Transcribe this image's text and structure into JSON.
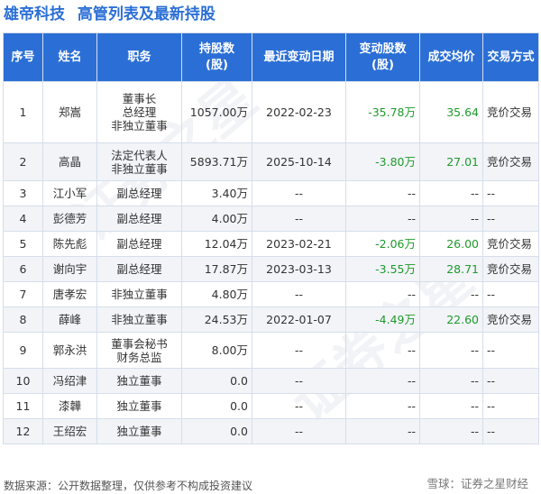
{
  "title": {
    "company": "雄帝科技",
    "text": "高管列表及最新持股"
  },
  "headers": [
    "序号",
    "姓名",
    "职务",
    "持股数\n(股)",
    "最近变动日期",
    "变动股数\n(股)",
    "成交均价",
    "交易方式"
  ],
  "rows": [
    {
      "no": "1",
      "name": "郑嵩",
      "title": [
        "董事长",
        "总经理",
        "非独立董事"
      ],
      "shares": "1057.00万",
      "date": "2022-02-23",
      "change": "-35.78万",
      "price": "35.64",
      "method": "竞价交易"
    },
    {
      "no": "2",
      "name": "高晶",
      "title": [
        "法定代表人",
        "非独立董事"
      ],
      "shares": "5893.71万",
      "date": "2025-10-14",
      "change": "-3.80万",
      "price": "27.01",
      "method": "竞价交易"
    },
    {
      "no": "3",
      "name": "江小军",
      "title": [
        "副总经理"
      ],
      "shares": "3.40万",
      "date": "--",
      "change": "--",
      "price": "--",
      "method": "--"
    },
    {
      "no": "4",
      "name": "彭德芳",
      "title": [
        "副总经理"
      ],
      "shares": "4.00万",
      "date": "--",
      "change": "--",
      "price": "--",
      "method": "--"
    },
    {
      "no": "5",
      "name": "陈先彪",
      "title": [
        "副总经理"
      ],
      "shares": "12.04万",
      "date": "2023-02-21",
      "change": "-2.06万",
      "price": "26.00",
      "method": "竞价交易"
    },
    {
      "no": "6",
      "name": "谢向宇",
      "title": [
        "副总经理"
      ],
      "shares": "17.87万",
      "date": "2023-03-13",
      "change": "-3.55万",
      "price": "28.71",
      "method": "竞价交易"
    },
    {
      "no": "7",
      "name": "唐孝宏",
      "title": [
        "非独立董事"
      ],
      "shares": "4.80万",
      "date": "--",
      "change": "--",
      "price": "--",
      "method": "--"
    },
    {
      "no": "8",
      "name": "薛峰",
      "title": [
        "非独立董事"
      ],
      "shares": "24.53万",
      "date": "2022-01-07",
      "change": "-4.49万",
      "price": "22.60",
      "method": "竞价交易"
    },
    {
      "no": "9",
      "name": "郭永洪",
      "title": [
        "董事会秘书",
        "财务总监"
      ],
      "shares": "8.00万",
      "date": "--",
      "change": "--",
      "price": "--",
      "method": "--"
    },
    {
      "no": "10",
      "name": "冯绍津",
      "title": [
        "独立董事"
      ],
      "shares": "0.0",
      "date": "--",
      "change": "--",
      "price": "--",
      "method": "--"
    },
    {
      "no": "11",
      "name": "漆韡",
      "title": [
        "独立董事"
      ],
      "shares": "0.0",
      "date": "--",
      "change": "--",
      "price": "--",
      "method": "--"
    },
    {
      "no": "12",
      "name": "王绍宏",
      "title": [
        "独立董事"
      ],
      "shares": "0.0",
      "date": "--",
      "change": "--",
      "price": "--",
      "method": "--"
    }
  ],
  "footer": {
    "source": "数据来源：公开数据整理，仅供参考不构成投资建议",
    "brand": "雪球：证券之星财经"
  },
  "colors": {
    "header_bg": "#2b6fd6",
    "title": "#2b6fd6",
    "change_color": "#1e9a2a"
  }
}
